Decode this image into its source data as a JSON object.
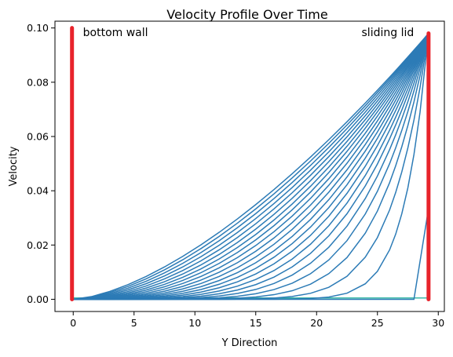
{
  "chart_data": {
    "type": "line",
    "title": "Velocity Profile Over Time",
    "xlabel": "Y Direction",
    "ylabel": "Velocity",
    "xlim": [
      -1.5,
      30.5
    ],
    "ylim": [
      -0.0045,
      0.1025
    ],
    "xticks": [
      0,
      5,
      10,
      15,
      20,
      25,
      30
    ],
    "yticks": [
      0.0,
      0.02,
      0.04,
      0.06,
      0.08,
      0.1
    ],
    "xtick_labels": [
      "0",
      "5",
      "10",
      "15",
      "20",
      "25",
      "30"
    ],
    "ytick_labels": [
      "0.00",
      "0.02",
      "0.04",
      "0.06",
      "0.08",
      "0.10"
    ],
    "grid": false,
    "annotations": [
      {
        "text": "bottom wall",
        "x": 0.8,
        "y": 0.0985,
        "anchor": "start"
      },
      {
        "text": "sliding lid",
        "x": 28.0,
        "y": 0.0985,
        "anchor": "end"
      }
    ],
    "walls": [
      {
        "x": -0.1,
        "y0": 0.0,
        "y1": 0.1,
        "color": "#e8232b"
      },
      {
        "x": 29.2,
        "y0": 0.0,
        "y1": 0.098,
        "color": "#e8232b"
      }
    ],
    "profiles": {
      "color": "#2c7bb6",
      "x_start": 0.0,
      "x_end": 29.2,
      "lid_velocity": 0.098,
      "x_points": [
        0,
        1.5,
        3,
        4.5,
        6,
        7.5,
        9,
        10.5,
        12,
        13.5,
        15,
        16.5,
        18,
        19.5,
        21,
        22.5,
        24,
        25,
        26,
        26.5,
        27,
        27.5,
        28,
        28.5,
        29.2
      ],
      "series": [
        {
          "shape_exponent": 1.55
        },
        {
          "shape_exponent": 1.62
        },
        {
          "shape_exponent": 1.7
        },
        {
          "shape_exponent": 1.79
        },
        {
          "shape_exponent": 1.89
        },
        {
          "shape_exponent": 2.0
        },
        {
          "shape_exponent": 2.12
        },
        {
          "shape_exponent": 2.25
        },
        {
          "shape_exponent": 2.4
        },
        {
          "shape_exponent": 2.57
        },
        {
          "shape_exponent": 2.76
        },
        {
          "shape_exponent": 2.98
        },
        {
          "shape_exponent": 3.23
        },
        {
          "shape_exponent": 3.53
        },
        {
          "shape_exponent": 3.9
        },
        {
          "shape_exponent": 4.35
        },
        {
          "shape_exponent": 4.95
        },
        {
          "shape_exponent": 5.8
        },
        {
          "shape_exponent": 7.1
        },
        {
          "shape_exponent": 9.4
        },
        {
          "shape_exponent": 14.5
        }
      ],
      "early_profile": {
        "x": [
          0,
          28.0,
          29.2
        ],
        "y": [
          0.0,
          0.0,
          0.0335
        ]
      },
      "baseline": {
        "x": [
          0,
          29.2
        ],
        "y": [
          0.0005,
          0.0005
        ],
        "color": "#3cb8a8"
      }
    }
  }
}
